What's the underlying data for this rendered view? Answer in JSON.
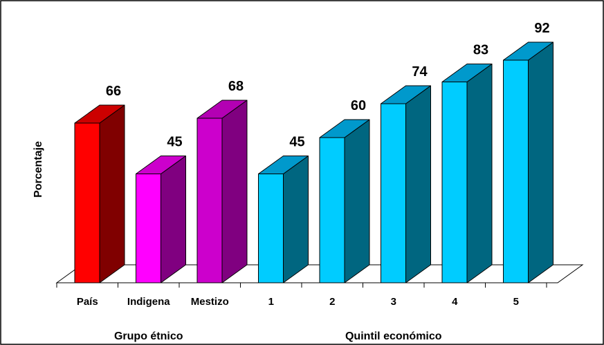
{
  "chart_data": {
    "type": "bar",
    "style": "3d",
    "title": "",
    "ylabel": "Porcentaje",
    "ylim": [
      0,
      100
    ],
    "grid": false,
    "legend": "none",
    "categories": [
      "País",
      "Indigena",
      "Mestizo",
      "1",
      "2",
      "3",
      "4",
      "5"
    ],
    "values": [
      66,
      45,
      68,
      45,
      60,
      74,
      83,
      92
    ],
    "groups": [
      {
        "label": "Grupo étnico",
        "categories": [
          "País",
          "Indigena",
          "Mestizo"
        ]
      },
      {
        "label": "Quintil económico",
        "categories": [
          "1",
          "2",
          "3",
          "4",
          "5"
        ]
      }
    ],
    "colors": [
      {
        "front": "#ff0000",
        "side": "#800000",
        "top": "#cc0000"
      },
      {
        "front": "#ff00ff",
        "side": "#800080",
        "top": "#cc00cc"
      },
      {
        "front": "#cc00cc",
        "side": "#800080",
        "top": "#b300b3"
      },
      {
        "front": "#00ccff",
        "side": "#006680",
        "top": "#0099cc"
      },
      {
        "front": "#00ccff",
        "side": "#006680",
        "top": "#0099cc"
      },
      {
        "front": "#00ccff",
        "side": "#006680",
        "top": "#0099cc"
      },
      {
        "front": "#00ccff",
        "side": "#006680",
        "top": "#0099cc"
      },
      {
        "front": "#00ccff",
        "side": "#006680",
        "top": "#0099cc"
      }
    ]
  }
}
